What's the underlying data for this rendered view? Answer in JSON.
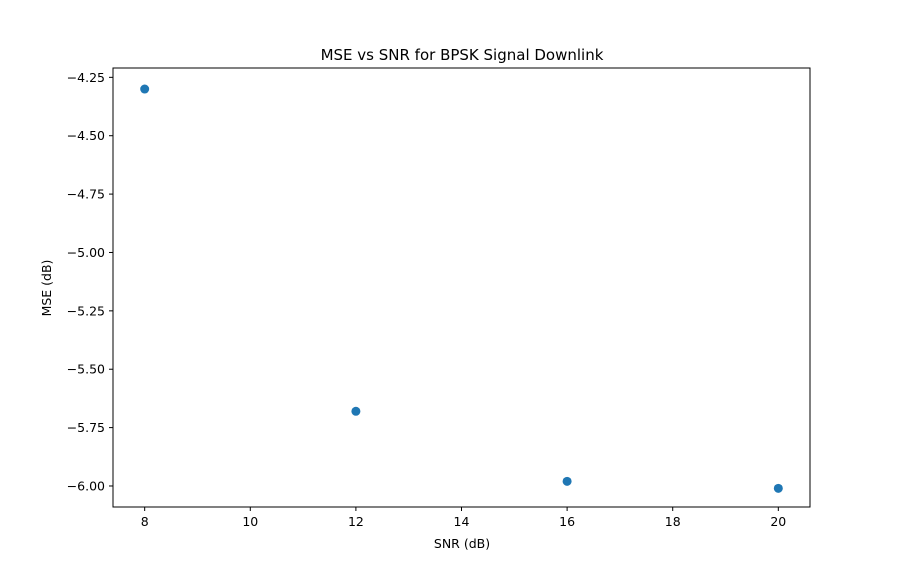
{
  "chart_data": {
    "type": "scatter",
    "title": "MSE vs SNR for BPSK Signal Downlink",
    "xlabel": "SNR (dB)",
    "ylabel": "MSE (dB)",
    "xlim": [
      7.4,
      20.6
    ],
    "ylim": [
      -6.09,
      -4.21
    ],
    "xticks": [
      8,
      10,
      12,
      14,
      16,
      18,
      20
    ],
    "xtick_labels": [
      "8",
      "10",
      "12",
      "14",
      "16",
      "18",
      "20"
    ],
    "yticks": [
      -4.25,
      -4.5,
      -4.75,
      -5.0,
      -5.25,
      -5.5,
      -5.75,
      -6.0
    ],
    "ytick_labels": [
      "−4.25",
      "−4.50",
      "−4.75",
      "−5.00",
      "−5.25",
      "−5.50",
      "−5.75",
      "−6.00"
    ],
    "grid": false,
    "series": [
      {
        "x": [
          8,
          12,
          16,
          20
        ],
        "y": [
          -4.3,
          -5.68,
          -5.98,
          -6.01
        ],
        "color": "#1f77b4"
      }
    ]
  }
}
